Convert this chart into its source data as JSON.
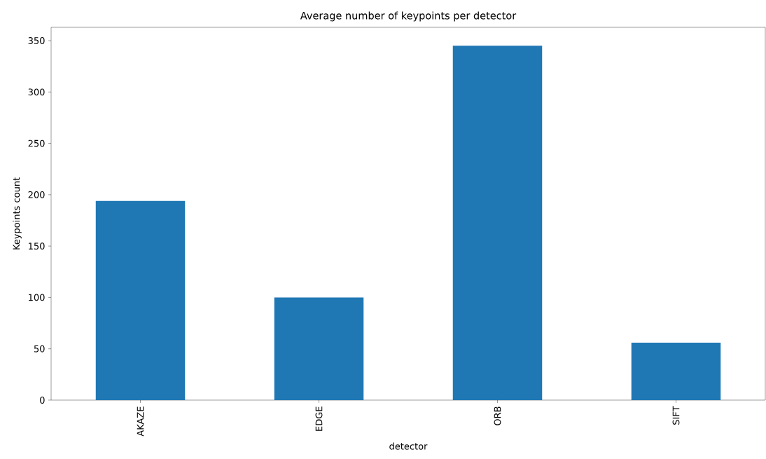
{
  "chart_data": {
    "type": "bar",
    "title": "Average number of keypoints per detector",
    "xlabel": "detector",
    "ylabel": "Keypoints count",
    "categories": [
      "AKAZE",
      "EDGE",
      "ORB",
      "SIFT"
    ],
    "values": [
      194,
      100,
      345,
      56
    ],
    "color": "#1f77b4",
    "ylim": [
      0,
      363
    ],
    "yticks": [
      0,
      50,
      100,
      150,
      200,
      250,
      300,
      350
    ],
    "grid": false
  }
}
